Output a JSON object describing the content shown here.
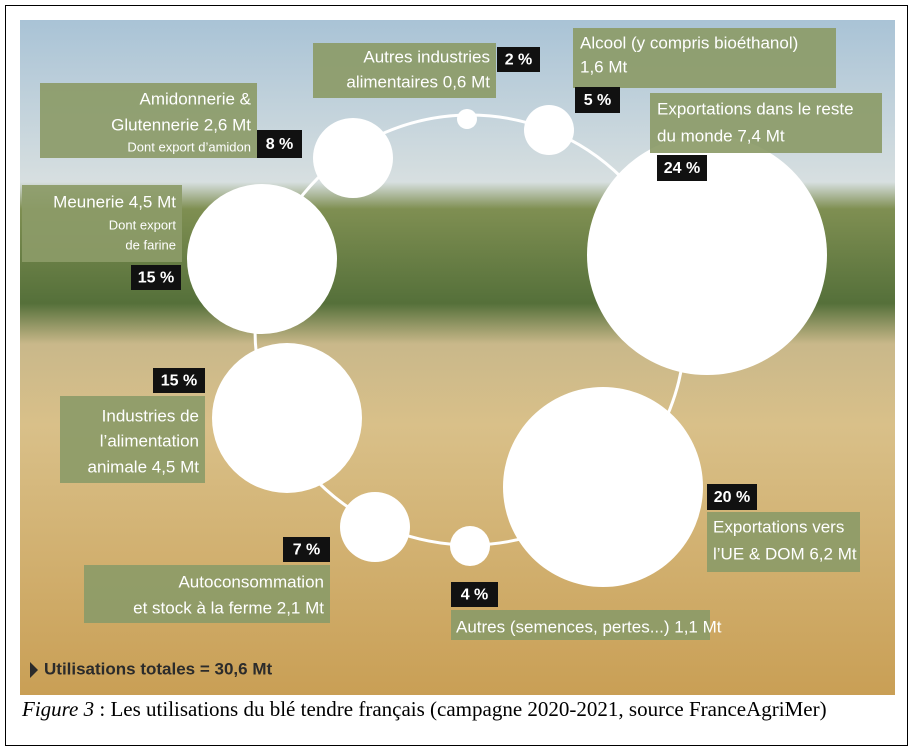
{
  "chart_data": {
    "type": "bubble",
    "categories": [
      [
        "Autres industries",
        "alimentaires 0,6 Mt"
      ],
      [
        "Alcool (y compris bioéthanol)",
        "1,6 Mt"
      ],
      [
        "Exportations dans le reste",
        "du monde 7,4 Mt"
      ],
      [
        "Exportations vers",
        "l’UE & DOM 6,2 Mt"
      ],
      [
        "Autres (semences, pertes...) 1,1 Mt"
      ],
      [
        "Autoconsommation",
        "et stock à la ferme 2,1 Mt"
      ],
      [
        "Industries de",
        "l’alimentation",
        "animale 4,5 Mt"
      ],
      [
        "Meunerie 4,5 Mt",
        "Dont export",
        "de farine"
      ],
      [
        "Amidonnerie &",
        "Glutennerie 2,6 Mt",
        "Dont export d’amidon"
      ]
    ],
    "values": [
      2,
      5,
      24,
      20,
      4,
      7,
      15,
      15,
      8
    ],
    "value_labels": [
      "2 %",
      "5 %",
      "24 %",
      "20 %",
      "4 %",
      "7 %",
      "15 %",
      "15 %",
      "8 %"
    ],
    "total": "Utilisations totales = 30,6 Mt",
    "caption": {
      "label": "Figure 3",
      "text": " : Les utilisations du blé tendre français (campagne 2020-2021, source FranceAgriMer)"
    }
  }
}
